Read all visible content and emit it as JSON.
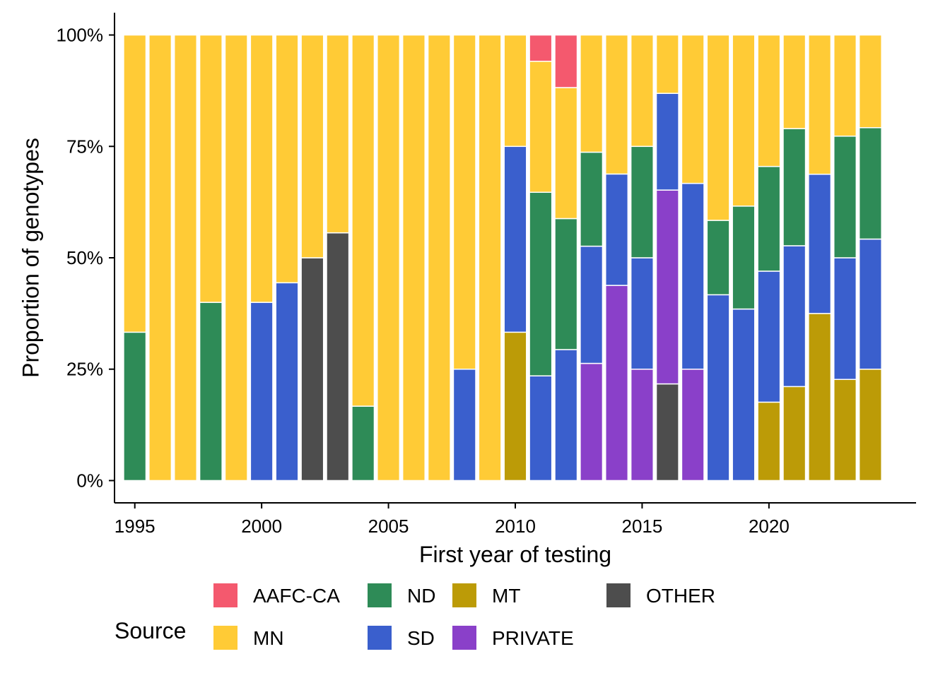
{
  "chart_data": {
    "type": "bar",
    "stacked": true,
    "xlabel": "First year of testing",
    "ylabel": "Proportion of genotypes",
    "xlim": [
      1994.2,
      2025.8
    ],
    "ylim": [
      -0.05,
      1.05
    ],
    "x_ticks": [
      1995,
      2000,
      2005,
      2010,
      2015,
      2020
    ],
    "y_ticks": [
      0,
      0.25,
      0.5,
      0.75,
      1.0
    ],
    "y_tick_labels": [
      "0%",
      "25%",
      "50%",
      "75%",
      "100%"
    ],
    "grid": false,
    "legend": {
      "title": "Source",
      "position": "bottom"
    },
    "stack_order_bottom_to_top": [
      "OTHER",
      "PRIVATE",
      "MT",
      "SD",
      "ND",
      "MN",
      "AAFC-CA"
    ],
    "series": [
      {
        "name": "AAFC-CA",
        "color": "#F4596E"
      },
      {
        "name": "MN",
        "color": "#FFCB36"
      },
      {
        "name": "ND",
        "color": "#2E8B57"
      },
      {
        "name": "SD",
        "color": "#3A5FCD"
      },
      {
        "name": "MT",
        "color": "#BC9B07"
      },
      {
        "name": "PRIVATE",
        "color": "#8A40C9"
      },
      {
        "name": "OTHER",
        "color": "#4D4D4D"
      }
    ],
    "bars": [
      {
        "year": 1995,
        "ND": 0.333,
        "MN": 0.667
      },
      {
        "year": 1996,
        "MN": 1.0
      },
      {
        "year": 1997,
        "MN": 1.0
      },
      {
        "year": 1998,
        "ND": 0.4,
        "MN": 0.6
      },
      {
        "year": 1999,
        "MN": 1.0
      },
      {
        "year": 2000,
        "SD": 0.4,
        "MN": 0.6
      },
      {
        "year": 2001,
        "SD": 0.444,
        "MN": 0.556
      },
      {
        "year": 2002,
        "OTHER": 0.5,
        "MN": 0.5
      },
      {
        "year": 2003,
        "OTHER": 0.556,
        "MN": 0.444
      },
      {
        "year": 2004,
        "ND": 0.167,
        "MN": 0.833
      },
      {
        "year": 2005,
        "MN": 1.0
      },
      {
        "year": 2006,
        "MN": 1.0
      },
      {
        "year": 2007,
        "MN": 1.0
      },
      {
        "year": 2008,
        "SD": 0.25,
        "MN": 0.75
      },
      {
        "year": 2009,
        "MN": 1.0
      },
      {
        "year": 2010,
        "MT": 0.333,
        "SD": 0.417,
        "MN": 0.25
      },
      {
        "year": 2011,
        "SD": 0.235,
        "ND": 0.412,
        "MN": 0.294,
        "AAFC-CA": 0.059
      },
      {
        "year": 2012,
        "SD": 0.294,
        "ND": 0.294,
        "MN": 0.294,
        "AAFC-CA": 0.118
      },
      {
        "year": 2013,
        "PRIVATE": 0.263,
        "SD": 0.263,
        "ND": 0.211,
        "MN": 0.263
      },
      {
        "year": 2014,
        "PRIVATE": 0.438,
        "SD": 0.25,
        "MN": 0.312
      },
      {
        "year": 2015,
        "PRIVATE": 0.25,
        "SD": 0.25,
        "ND": 0.25,
        "MN": 0.25
      },
      {
        "year": 2016,
        "OTHER": 0.217,
        "PRIVATE": 0.435,
        "SD": 0.217,
        "MN": 0.131
      },
      {
        "year": 2017,
        "PRIVATE": 0.25,
        "SD": 0.417,
        "MN": 0.333
      },
      {
        "year": 2018,
        "SD": 0.417,
        "ND": 0.167,
        "MN": 0.416
      },
      {
        "year": 2019,
        "SD": 0.385,
        "ND": 0.231,
        "MN": 0.384
      },
      {
        "year": 2020,
        "MT": 0.176,
        "SD": 0.294,
        "ND": 0.235,
        "MN": 0.295
      },
      {
        "year": 2021,
        "MT": 0.211,
        "SD": 0.316,
        "ND": 0.263,
        "MN": 0.21
      },
      {
        "year": 2022,
        "MT": 0.375,
        "SD": 0.3125,
        "MN": 0.3125
      },
      {
        "year": 2023,
        "MT": 0.227,
        "SD": 0.273,
        "ND": 0.273,
        "MN": 0.227
      },
      {
        "year": 2024,
        "MT": 0.25,
        "SD": 0.292,
        "ND": 0.25,
        "MN": 0.208
      }
    ]
  }
}
